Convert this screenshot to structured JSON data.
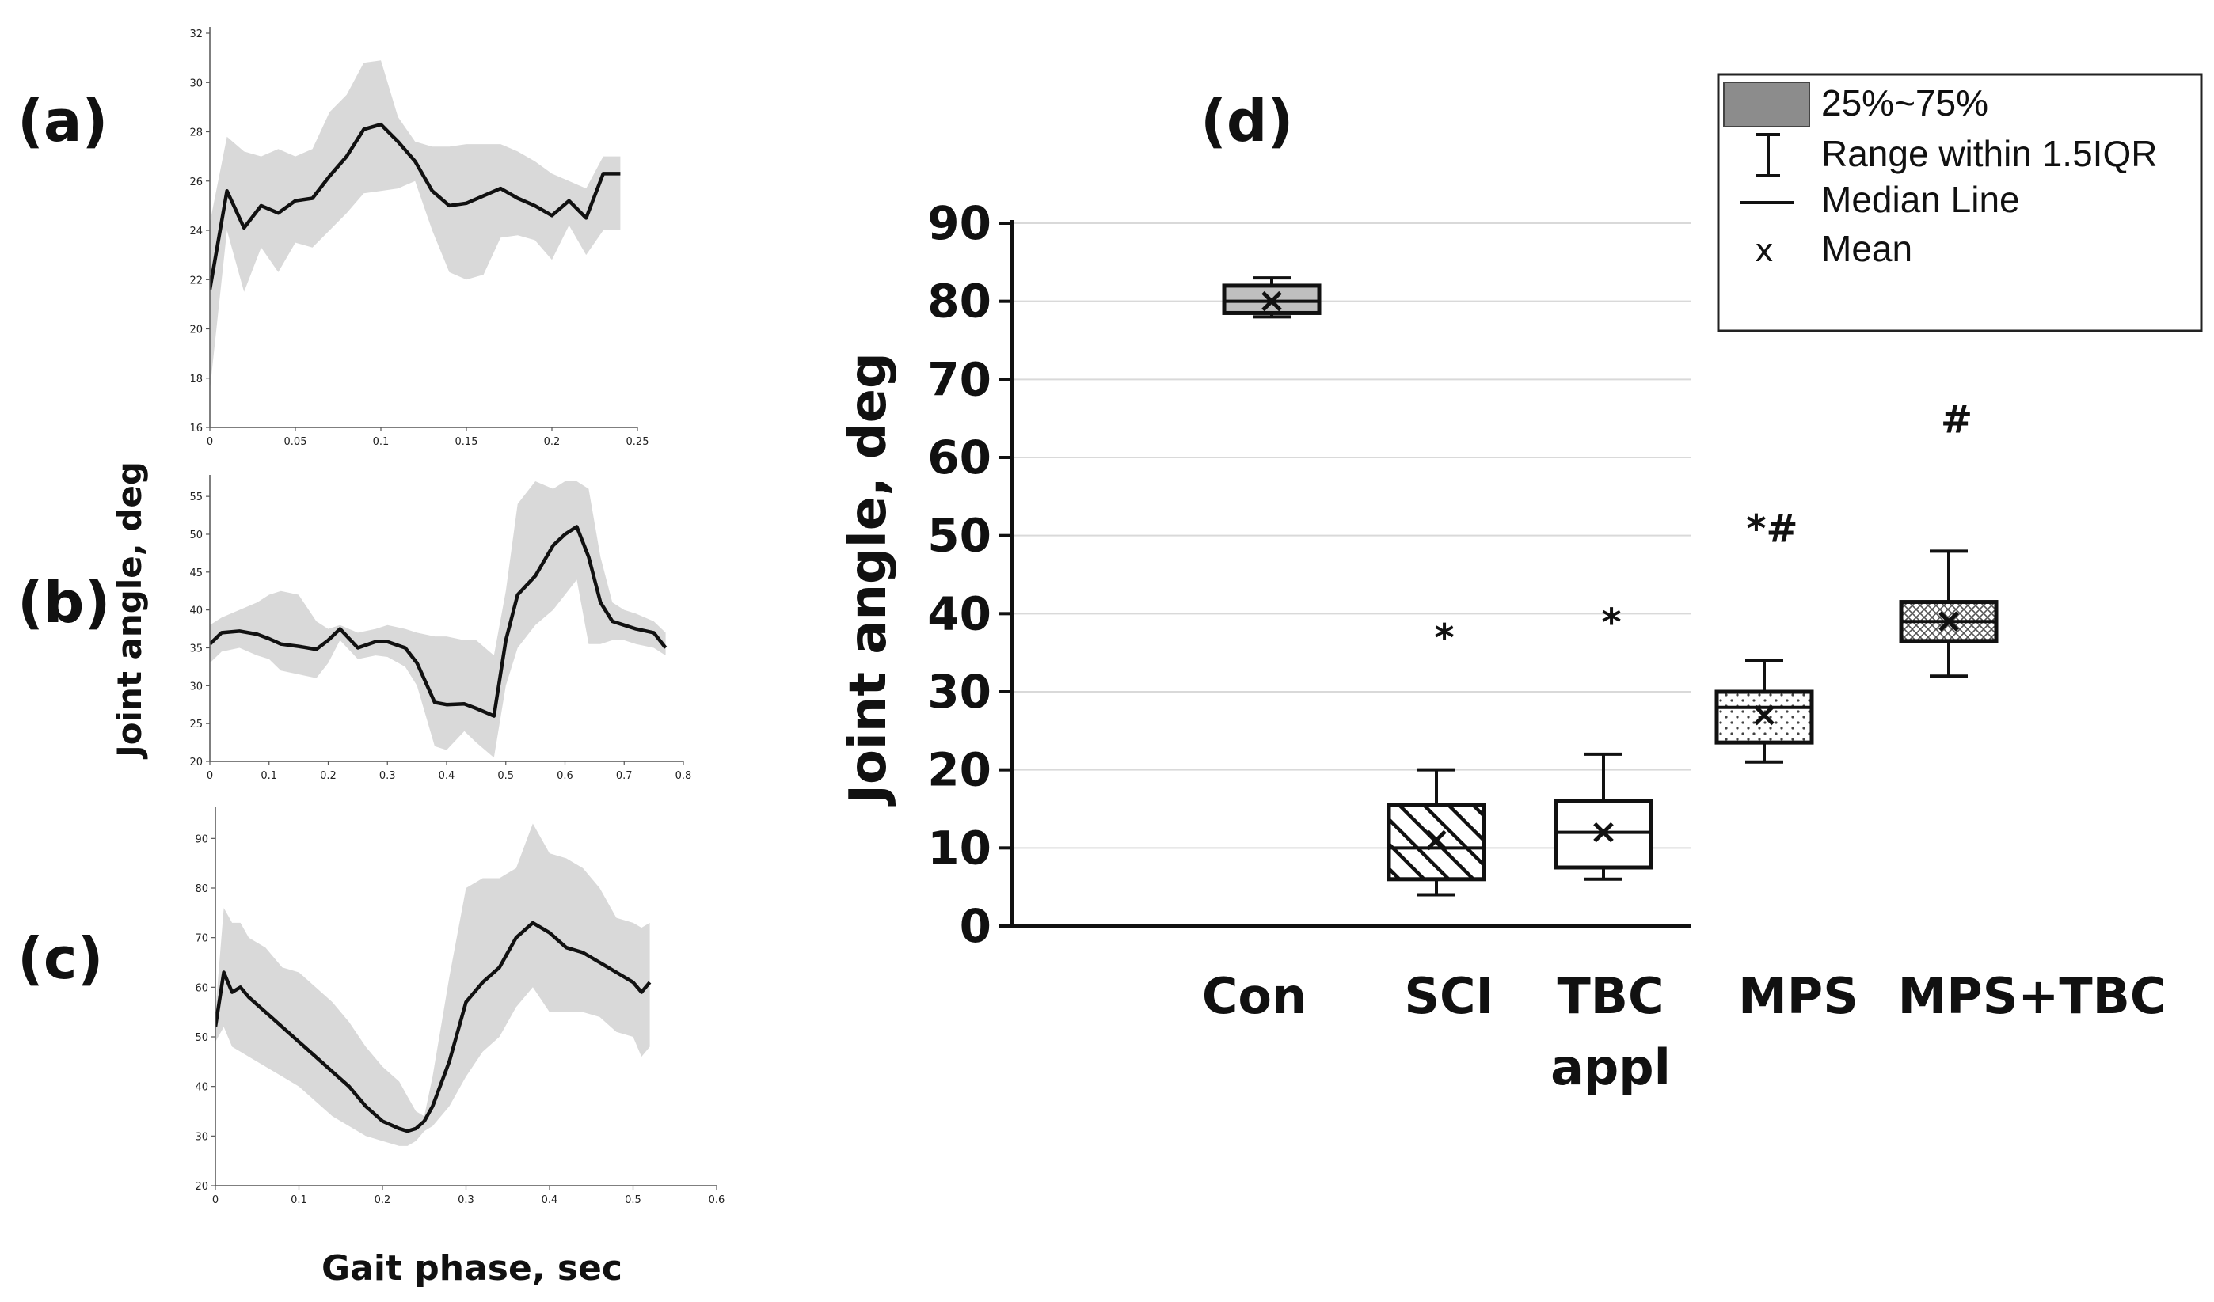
{
  "figure": {
    "shared_ylabel": "Joint angle, deg",
    "shared_xlabel": "Gait phase, sec"
  },
  "colors": {
    "band": "#d9d9d9",
    "line": "#111111",
    "con_box": "#bfbfbf",
    "grid": "#d9d9d9",
    "legend_box": "#8c8c8c"
  },
  "chart_data": [
    {
      "id": "a",
      "type": "area",
      "panel_label": "(a)",
      "xlim": [
        0,
        0.25
      ],
      "ylim": [
        16,
        32
      ],
      "xticks": [
        "0",
        "0.05",
        "0.1",
        "0.15",
        "0.2",
        "0.25"
      ],
      "yticks": [
        "16",
        "18",
        "20",
        "22",
        "24",
        "26",
        "28",
        "30",
        "32"
      ],
      "series": [
        {
          "role": "mean",
          "x": [
            0,
            0.01,
            0.02,
            0.03,
            0.04,
            0.05,
            0.06,
            0.07,
            0.08,
            0.09,
            0.1,
            0.11,
            0.12,
            0.13,
            0.14,
            0.15,
            0.16,
            0.17,
            0.18,
            0.19,
            0.2,
            0.21,
            0.22,
            0.23,
            0.24
          ],
          "y": [
            21.6,
            25.6,
            24.1,
            25.0,
            24.7,
            25.2,
            25.3,
            26.2,
            27.0,
            28.1,
            28.3,
            27.6,
            26.8,
            25.6,
            25.0,
            25.1,
            25.4,
            25.7,
            25.3,
            25.0,
            24.6,
            25.2,
            24.5,
            26.3,
            26.3
          ],
          "upper": [
            24.3,
            27.8,
            27.2,
            27.0,
            27.3,
            27.0,
            27.3,
            28.8,
            29.5,
            30.8,
            30.9,
            28.6,
            27.6,
            27.4,
            27.4,
            27.5,
            27.5,
            27.5,
            27.2,
            26.8,
            26.3,
            26.0,
            25.7,
            27.0,
            27.0
          ],
          "lower": [
            17.5,
            24.0,
            21.5,
            23.3,
            22.3,
            23.5,
            23.3,
            24.0,
            24.7,
            25.5,
            25.6,
            25.7,
            26.0,
            24.0,
            22.3,
            22.0,
            22.2,
            23.7,
            23.8,
            23.6,
            22.8,
            24.2,
            23.0,
            24.0,
            24.0
          ]
        }
      ]
    },
    {
      "id": "b",
      "type": "area",
      "panel_label": "(b)",
      "xlim": [
        0,
        0.8
      ],
      "ylim": [
        20,
        57
      ],
      "xticks": [
        "0",
        "0.1",
        "0.2",
        "0.3",
        "0.4",
        "0.5",
        "0.6",
        "0.7",
        "0.8"
      ],
      "yticks": [
        "20",
        "25",
        "30",
        "35",
        "40",
        "45",
        "50",
        "55"
      ],
      "series": [
        {
          "role": "mean",
          "x": [
            0,
            0.02,
            0.05,
            0.08,
            0.1,
            0.12,
            0.15,
            0.18,
            0.2,
            0.22,
            0.25,
            0.28,
            0.3,
            0.33,
            0.35,
            0.38,
            0.4,
            0.43,
            0.45,
            0.48,
            0.5,
            0.52,
            0.55,
            0.58,
            0.6,
            0.62,
            0.64,
            0.66,
            0.68,
            0.7,
            0.72,
            0.75,
            0.77
          ],
          "y": [
            35.5,
            37.0,
            37.2,
            36.8,
            36.2,
            35.5,
            35.2,
            34.8,
            36.0,
            37.5,
            35.0,
            35.8,
            35.8,
            35.0,
            33.0,
            27.8,
            27.5,
            27.6,
            27.0,
            26.0,
            36.0,
            42.0,
            44.5,
            48.5,
            50.0,
            51.0,
            47.0,
            41.0,
            38.5,
            38.0,
            37.5,
            37.0,
            35.0
          ],
          "upper": [
            38.0,
            39.0,
            40.0,
            41.0,
            42.0,
            42.5,
            42.0,
            38.5,
            37.5,
            38.0,
            37.0,
            37.5,
            38.0,
            37.5,
            37.0,
            36.5,
            36.5,
            36.0,
            36.0,
            34.0,
            42.5,
            54.0,
            57.0,
            56.0,
            57.0,
            57.0,
            56.0,
            47.0,
            41.0,
            40.0,
            39.5,
            38.5,
            37.0
          ],
          "lower": [
            33.0,
            34.5,
            35.0,
            34.0,
            33.5,
            32.0,
            31.5,
            31.0,
            33.0,
            36.0,
            33.5,
            34.0,
            33.8,
            32.5,
            30.0,
            22.0,
            21.5,
            24.0,
            22.5,
            20.5,
            30.0,
            35.0,
            38.0,
            40.0,
            42.0,
            44.0,
            35.5,
            35.5,
            36.0,
            36.0,
            35.5,
            35.0,
            34.0
          ]
        }
      ]
    },
    {
      "id": "c",
      "type": "area",
      "panel_label": "(c)",
      "xlim": [
        0,
        0.6
      ],
      "ylim": [
        20,
        95
      ],
      "xticks": [
        "0",
        "0.1",
        "0.2",
        "0.3",
        "0.4",
        "0.5",
        "0.6"
      ],
      "yticks": [
        "20",
        "30",
        "40",
        "50",
        "60",
        "70",
        "80",
        "90"
      ],
      "series": [
        {
          "role": "mean",
          "x": [
            0,
            0.01,
            0.02,
            0.03,
            0.04,
            0.06,
            0.08,
            0.1,
            0.12,
            0.14,
            0.16,
            0.18,
            0.2,
            0.22,
            0.23,
            0.24,
            0.25,
            0.26,
            0.28,
            0.3,
            0.32,
            0.34,
            0.36,
            0.38,
            0.4,
            0.42,
            0.44,
            0.46,
            0.48,
            0.5,
            0.51,
            0.52
          ],
          "y": [
            52,
            63,
            59,
            60,
            58,
            55,
            52,
            49,
            46,
            43,
            40,
            36,
            33,
            31.5,
            31,
            31.5,
            33,
            36,
            45,
            57,
            61,
            64,
            70,
            73,
            71,
            68,
            67,
            65,
            63,
            61,
            59,
            61
          ],
          "upper": [
            55,
            76,
            73,
            73,
            70,
            68,
            64,
            63,
            60,
            57,
            53,
            48,
            44,
            41,
            38,
            35,
            34,
            42,
            62,
            80,
            82,
            82,
            84,
            93,
            87,
            86,
            84,
            80,
            74,
            73,
            72,
            73
          ],
          "lower": [
            49,
            52,
            48,
            47,
            46,
            44,
            42,
            40,
            37,
            34,
            32,
            30,
            29,
            28,
            28,
            29,
            31,
            32,
            36,
            42,
            47,
            50,
            56,
            60,
            55,
            55,
            55,
            54,
            51,
            50,
            46,
            48
          ]
        }
      ]
    },
    {
      "id": "d",
      "type": "box",
      "panel_label": "(d)",
      "ylabel": "Joint angle, deg",
      "ylim": [
        0,
        90
      ],
      "yticks": [
        "0",
        "10",
        "20",
        "30",
        "40",
        "50",
        "60",
        "70",
        "80",
        "90"
      ],
      "grid": true,
      "legend_position": "top-right",
      "legend": [
        {
          "symbol": "box",
          "label": "25%~75%"
        },
        {
          "symbol": "whisker",
          "label": "Range within 1.5IQR"
        },
        {
          "symbol": "line",
          "label": "Median Line"
        },
        {
          "symbol": "x",
          "label": "Mean"
        }
      ],
      "categories": [
        "Con",
        "SCI",
        "TBC appl",
        "MPS",
        "MPS+TBC"
      ],
      "category_lines": [
        [
          "Con"
        ],
        [
          "SCI"
        ],
        [
          "TBC",
          "appl"
        ],
        [
          "MPS"
        ],
        [
          "MPS+TBC"
        ]
      ],
      "boxes": [
        {
          "category": "Con",
          "whisker_low": 78,
          "q1": 78.5,
          "median": 80,
          "q3": 82,
          "whisker_high": 83,
          "mean": 80,
          "fill": "solid-gray",
          "annotation": ""
        },
        {
          "category": "SCI",
          "whisker_low": 4,
          "q1": 6,
          "median": 10,
          "q3": 15.5,
          "whisker_high": 20,
          "mean": 11,
          "fill": "diagonal-hatch",
          "annotation": "*"
        },
        {
          "category": "TBC appl",
          "whisker_low": 6,
          "q1": 7.5,
          "median": 12,
          "q3": 16,
          "whisker_high": 22,
          "mean": 12,
          "fill": "white",
          "annotation": "*"
        },
        {
          "category": "MPS",
          "whisker_low": 21,
          "q1": 23.5,
          "median": 28,
          "q3": 30,
          "whisker_high": 34,
          "mean": 27,
          "fill": "dotted",
          "annotation": "*#"
        },
        {
          "category": "MPS+TBC",
          "whisker_low": 32,
          "q1": 36.5,
          "median": 39,
          "q3": 41.5,
          "whisker_high": 48,
          "mean": 39,
          "fill": "crosshatch",
          "annotation": "#"
        }
      ]
    }
  ]
}
